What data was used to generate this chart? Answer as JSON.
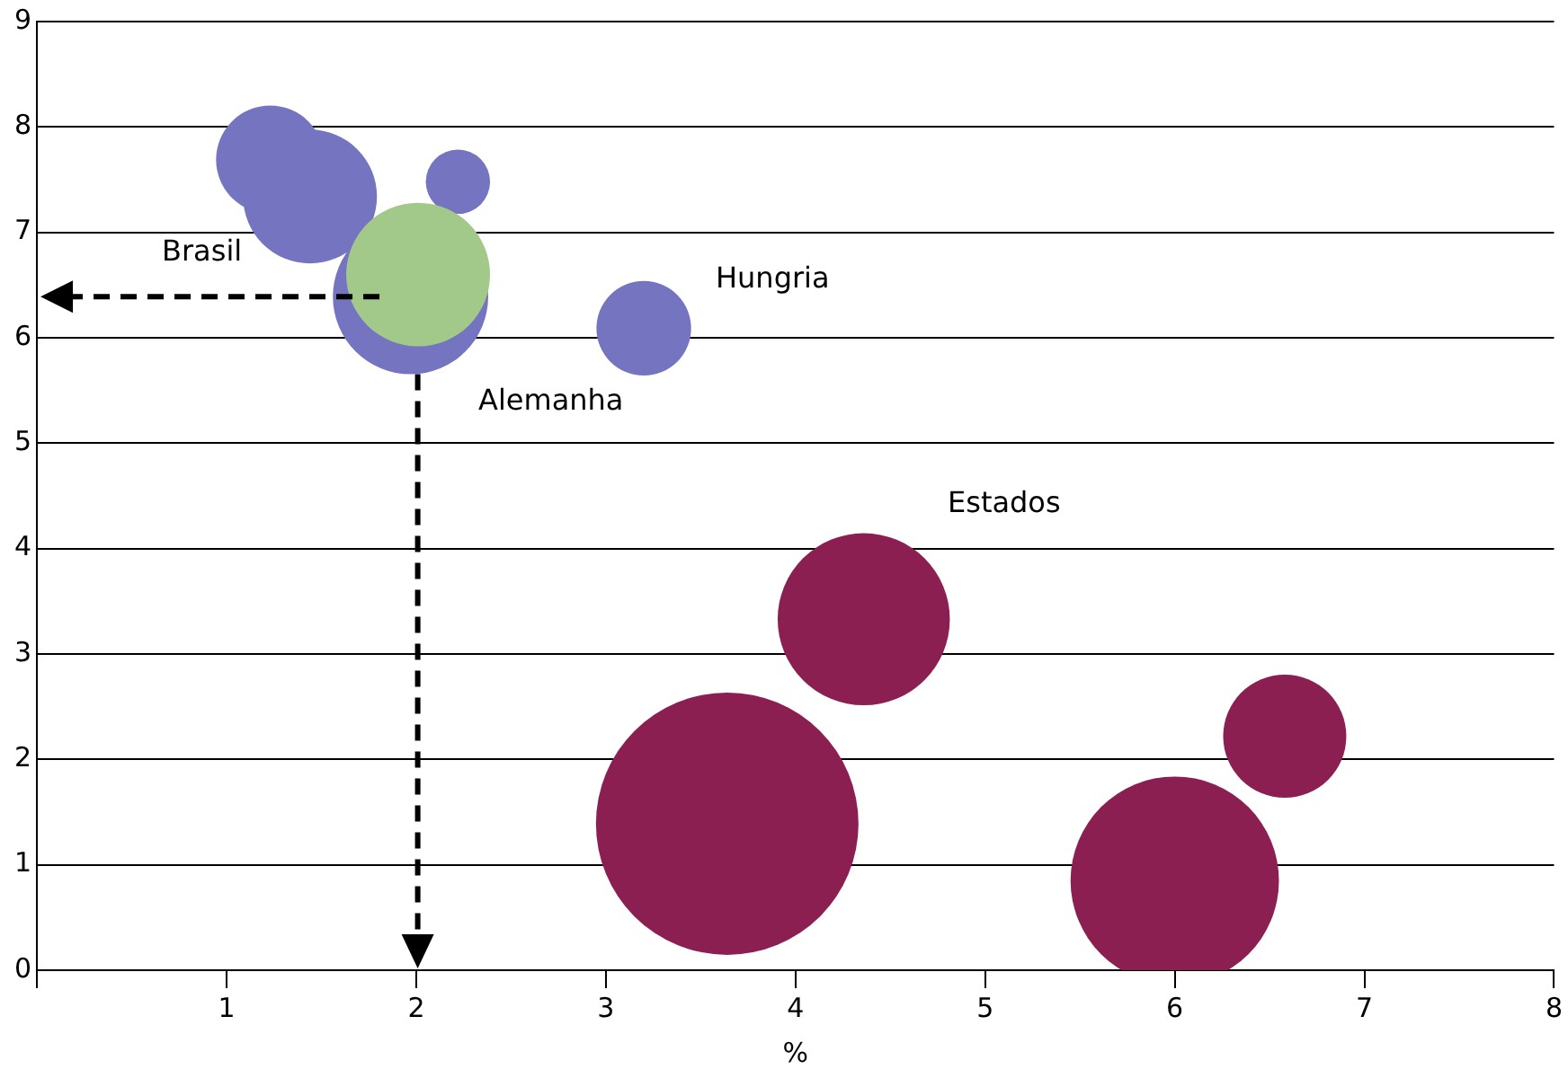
{
  "chart_data": {
    "type": "bubble",
    "xlabel": "%",
    "series": [
      {
        "color": "#7474c0",
        "x": [
          1.23,
          1.44,
          2.22,
          1.97,
          3.2
        ],
        "values": [
          7.69,
          7.34,
          7.48,
          6.39,
          6.09
        ],
        "sizes": [
          0.17,
          0.26,
          0.06,
          0.35,
          0.13
        ]
      },
      {
        "color": "#a3c98a",
        "x": [
          2.01
        ],
        "values": [
          6.6
        ],
        "sizes": [
          0.3
        ]
      },
      {
        "color": "#8c1f52",
        "x": [
          4.36,
          3.64,
          6.58,
          6.0
        ],
        "values": [
          3.33,
          1.39,
          2.22,
          0.85
        ],
        "sizes": [
          0.43,
          1,
          0.22,
          0.63
        ]
      }
    ],
    "xlim": [
      0,
      8
    ],
    "xticks": [
      {
        "value": 0,
        "label": null
      },
      1,
      2,
      3,
      4,
      5,
      6,
      7,
      8
    ],
    "ylim": [
      0,
      9
    ],
    "yticks": [
      0,
      1,
      2,
      3,
      4,
      5,
      6,
      7,
      8,
      9
    ],
    "grid": "y",
    "legend": false,
    "annotations": [
      "Brasil",
      "Hungria",
      "Alemanha",
      "Estados"
    ]
  }
}
